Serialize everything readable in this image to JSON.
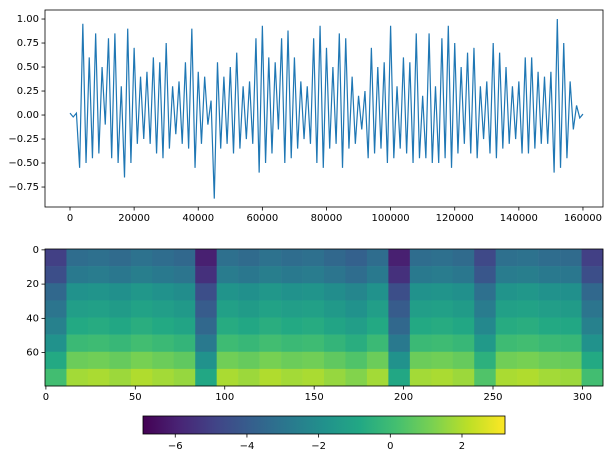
{
  "chart_data": [
    {
      "type": "line",
      "x": [
        0,
        1000,
        2000,
        3000,
        4000,
        5000,
        6000,
        7000,
        8000,
        9000,
        10000,
        11000,
        12000,
        13000,
        14000,
        15000,
        16000,
        17000,
        18000,
        19000,
        20000,
        21000,
        22000,
        23000,
        24000,
        25000,
        26000,
        27000,
        28000,
        29000,
        30000,
        31000,
        32000,
        33000,
        34000,
        35000,
        36000,
        37000,
        38000,
        39000,
        40000,
        41000,
        42000,
        43000,
        44000,
        45000,
        46000,
        47000,
        48000,
        49000,
        50000,
        51000,
        52000,
        53000,
        54000,
        55000,
        56000,
        57000,
        58000,
        59000,
        60000,
        61000,
        62000,
        63000,
        64000,
        65000,
        66000,
        67000,
        68000,
        69000,
        70000,
        71000,
        72000,
        73000,
        74000,
        75000,
        76000,
        77000,
        78000,
        79000,
        80000,
        81000,
        82000,
        83000,
        84000,
        85000,
        86000,
        87000,
        88000,
        89000,
        90000,
        91000,
        92000,
        93000,
        94000,
        95000,
        96000,
        97000,
        98000,
        99000,
        100000,
        101000,
        102000,
        103000,
        104000,
        105000,
        106000,
        107000,
        108000,
        109000,
        110000,
        111000,
        112000,
        113000,
        114000,
        115000,
        116000,
        117000,
        118000,
        119000,
        120000,
        121000,
        122000,
        123000,
        124000,
        125000,
        126000,
        127000,
        128000,
        129000,
        130000,
        131000,
        132000,
        133000,
        134000,
        135000,
        136000,
        137000,
        138000,
        139000,
        140000,
        141000,
        142000,
        143000,
        144000,
        145000,
        146000,
        147000,
        148000,
        149000,
        150000,
        151000,
        152000,
        153000,
        154000,
        155000,
        156000,
        157000,
        158000,
        159000,
        160000
      ],
      "series": [
        {
          "color": "#1f77b4",
          "values": [
            0.02,
            -0.02,
            0.02,
            -0.55,
            0.95,
            -0.5,
            0.6,
            -0.45,
            0.85,
            -0.4,
            0.5,
            -0.1,
            0.8,
            -0.45,
            0.85,
            -0.5,
            0.3,
            -0.65,
            0.9,
            -0.5,
            0.7,
            -0.3,
            0.4,
            -0.25,
            0.45,
            -0.3,
            0.6,
            -0.4,
            0.55,
            -0.45,
            0.75,
            -0.35,
            0.3,
            -0.2,
            0.35,
            -0.3,
            0.55,
            -0.35,
            0.9,
            -0.55,
            0.45,
            -0.3,
            0.4,
            -0.1,
            0.15,
            -0.87,
            0.55,
            -0.35,
            0.4,
            -0.3,
            0.5,
            -0.4,
            0.65,
            -0.35,
            0.3,
            -0.25,
            0.35,
            -0.3,
            0.8,
            -0.6,
            0.93,
            -0.5,
            0.6,
            -0.4,
            0.55,
            -0.15,
            0.8,
            -0.5,
            0.88,
            -0.45,
            0.6,
            -0.35,
            0.35,
            -0.25,
            0.3,
            -0.3,
            0.8,
            -0.5,
            0.93,
            -0.55,
            0.7,
            -0.35,
            0.5,
            -0.3,
            0.85,
            -0.55,
            0.8,
            -0.35,
            0.4,
            -0.3,
            0.2,
            -0.15,
            0.25,
            -0.45,
            0.7,
            -0.4,
            0.5,
            -0.35,
            0.55,
            -0.5,
            0.93,
            -0.45,
            0.3,
            -0.35,
            0.6,
            -0.4,
            0.55,
            -0.5,
            0.85,
            -0.45,
            0.2,
            -0.45,
            0.85,
            -0.5,
            0.3,
            -0.5,
            0.8,
            -0.45,
            0.93,
            -0.55,
            0.75,
            -0.4,
            0.5,
            -0.3,
            0.65,
            -0.4,
            0.7,
            -0.45,
            0.3,
            -0.25,
            0.35,
            -0.4,
            0.75,
            -0.45,
            0.65,
            -0.35,
            0.5,
            -0.3,
            0.3,
            -0.25,
            0.35,
            -0.4,
            0.6,
            -0.4,
            0.6,
            -0.35,
            0.45,
            -0.3,
            0.4,
            -0.3,
            0.45,
            -0.6,
            1.0,
            -0.55,
            0.75,
            -0.45,
            0.35,
            -0.15,
            0.1,
            -0.03,
            0.01
          ]
        }
      ],
      "xlim": [
        -7800,
        166250
      ],
      "ylim": [
        -0.958,
        1.094
      ],
      "xticks": [
        0,
        20000,
        40000,
        60000,
        80000,
        100000,
        120000,
        140000,
        160000
      ],
      "yticks": [
        {
          "value": -0.75,
          "label": "−0.75"
        },
        {
          "value": -0.5,
          "label": "−0.50"
        },
        {
          "value": -0.25,
          "label": "−0.25"
        },
        {
          "value": 0,
          "label": "0.00"
        },
        {
          "value": 0.25,
          "label": "0.25"
        },
        {
          "value": 0.5,
          "label": "0.50"
        },
        {
          "value": 0.75,
          "label": "0.75"
        },
        {
          "value": 1,
          "label": "1.00"
        }
      ]
    },
    {
      "type": "heatmap",
      "colormap": "viridis",
      "xbins": [
        -0.5,
        11.5,
        23.5,
        35.5,
        47.5,
        59.5,
        71.5,
        83.5,
        95.5,
        107.5,
        119.5,
        131.5,
        143.5,
        155.5,
        167.5,
        179.5,
        191.5,
        203.5,
        215.5,
        227.5,
        239.5,
        251.5,
        263.5,
        275.5,
        287.5,
        299.5,
        311.5
      ],
      "ybins": [
        -0.5,
        9.5,
        19.5,
        29.5,
        39.5,
        49.5,
        59.5,
        69.5,
        79.5
      ],
      "values": [
        [
          -5,
          -3.3,
          -3.2,
          -3.4,
          -3.1,
          -3.3,
          -3.5,
          -6,
          -3.2,
          -3.4,
          -3.1,
          -3.3,
          -3.2,
          -3.5,
          -3.8,
          -3.3,
          -6,
          -3.3,
          -3.2,
          -3.4,
          -4.7,
          -3.2,
          -3.1,
          -3.3,
          -3.4,
          -5
        ],
        [
          -4.5,
          -2.8,
          -2.7,
          -2.9,
          -2.6,
          -2.8,
          -3,
          -5.5,
          -2.7,
          -2.9,
          -2.6,
          -2.8,
          -2.7,
          -3,
          -3.3,
          -2.8,
          -5.5,
          -2.8,
          -2.7,
          -2.9,
          -4.2,
          -2.7,
          -2.6,
          -2.8,
          -2.9,
          -4.5
        ],
        [
          -3.5,
          -1.8,
          -1.7,
          -1.9,
          -1.6,
          -1.8,
          -2,
          -4.5,
          -1.7,
          -1.9,
          -1.6,
          -1.8,
          -1.7,
          -2,
          -2.3,
          -1.8,
          -4.5,
          -1.8,
          -1.7,
          -1.9,
          -3.2,
          -1.7,
          -1.6,
          -1.8,
          -1.9,
          -3.5
        ],
        [
          -3,
          -1.3,
          -1.2,
          -1.4,
          -1.1,
          -1.3,
          -1.5,
          -4,
          -1.2,
          -1.4,
          -1.1,
          -1.3,
          -1.2,
          -1.5,
          -1.8,
          -1.3,
          -4,
          -1.3,
          -1.2,
          -1.4,
          -2.7,
          -1.2,
          -1.1,
          -1.3,
          -1.4,
          -3
        ],
        [
          -2.5,
          -0.8,
          -0.7,
          -0.9,
          -0.6,
          -0.8,
          -1,
          -3.5,
          -0.7,
          -0.9,
          -0.6,
          -0.8,
          -0.7,
          -1,
          -1.3,
          -0.8,
          -3.5,
          -0.8,
          -0.7,
          -0.9,
          -2.2,
          -0.7,
          -0.6,
          -0.8,
          -0.9,
          -2.5
        ],
        [
          -1.8,
          -0.1,
          0,
          -0.2,
          0.1,
          -0.1,
          -0.3,
          -2.8,
          0,
          -0.2,
          0.1,
          -0.1,
          0,
          -0.3,
          -0.6,
          -0.1,
          -2.8,
          -0.1,
          0,
          -0.2,
          -1.5,
          0,
          0.1,
          -0.1,
          -0.2,
          -1.8
        ],
        [
          -0.8,
          0.9,
          1,
          0.8,
          1.1,
          0.9,
          0.7,
          -1.8,
          1,
          0.8,
          1.1,
          0.9,
          1,
          0.7,
          0.4,
          0.9,
          -1.8,
          0.9,
          1,
          0.8,
          -0.5,
          1,
          1.1,
          0.9,
          0.8,
          -0.8
        ],
        [
          0.1,
          1.8,
          1.9,
          1.7,
          2,
          1.8,
          1.6,
          -0.9,
          1.9,
          1.7,
          2,
          1.8,
          1.9,
          1.6,
          1.3,
          1.8,
          -0.9,
          1.8,
          1.9,
          1.7,
          0.4,
          1.9,
          2,
          1.8,
          1.7,
          0.1
        ]
      ],
      "xlim": [
        -0.5,
        311.5
      ],
      "ylim": [
        79.5,
        -0.5
      ],
      "xticks": [
        0,
        50,
        100,
        150,
        200,
        250,
        300
      ],
      "yticks": [
        0,
        20,
        40,
        60
      ],
      "clim": [
        -6.9,
        3.2
      ],
      "cticks": [
        {
          "value": -6,
          "label": "−6"
        },
        {
          "value": -4,
          "label": "−4"
        },
        {
          "value": -2,
          "label": "−2"
        },
        0,
        2
      ]
    }
  ]
}
